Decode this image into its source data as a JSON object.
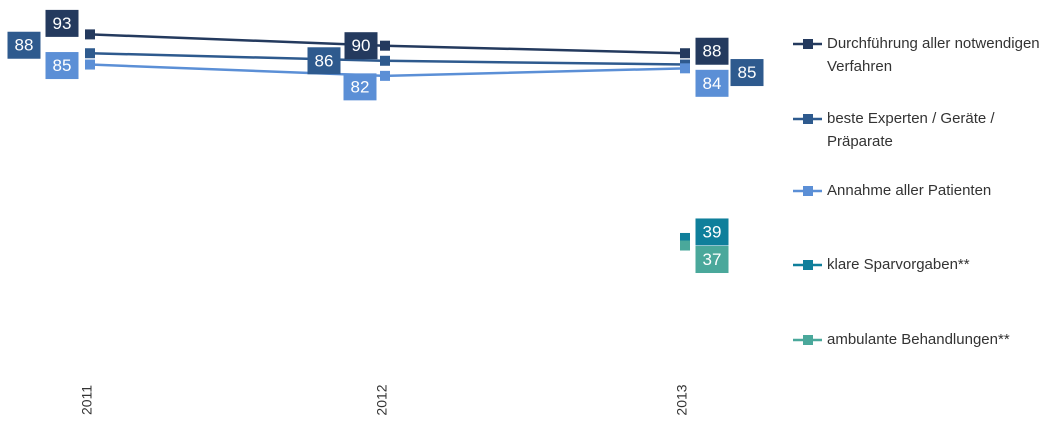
{
  "chart_data": {
    "type": "line",
    "categories": [
      "2011",
      "2012",
      "2013"
    ],
    "series": [
      {
        "name": "Durchführung aller notwendigen Verfahren",
        "color": "#243a5e",
        "values": [
          93,
          90,
          88
        ]
      },
      {
        "name": "beste Experten / Geräte / Präparate",
        "color": "#2e5a8e",
        "values": [
          88,
          86,
          85
        ]
      },
      {
        "name": "Annahme aller Patienten",
        "color": "#5b8fd6",
        "values": [
          85,
          82,
          84
        ]
      },
      {
        "name": "klare Sparvorgaben**",
        "color": "#0f7f9b",
        "values": [
          null,
          null,
          39
        ]
      },
      {
        "name": "ambulante Behandlungen**",
        "color": "#4aa89b",
        "values": [
          null,
          null,
          37
        ]
      }
    ]
  }
}
